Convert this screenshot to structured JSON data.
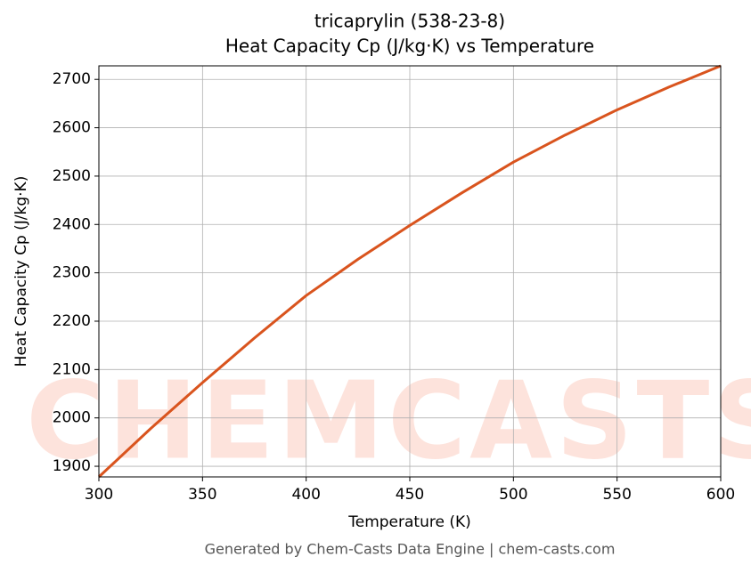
{
  "chart_data": {
    "type": "line",
    "title": "tricaprylin (538-23-8)",
    "subtitle": "Heat Capacity Cp (J/kg·K) vs Temperature",
    "x_label": "Temperature (K)",
    "y_label": "Heat Capacity Cp (J/kg·K)",
    "footer": "Generated by Chem-Casts Data Engine | chem-casts.com",
    "watermark": "CHEMCASTS",
    "x": [
      300,
      325,
      350,
      375,
      400,
      425,
      450,
      475,
      500,
      525,
      550,
      575,
      600
    ],
    "series": [
      {
        "name": "Cp",
        "color": "#d9541e",
        "values": [
          1878,
          1978,
          2073,
          2165,
          2253,
          2328,
          2398,
          2465,
          2529,
          2585,
          2637,
          2684,
          2728
        ]
      }
    ],
    "xlim": [
      300,
      600
    ],
    "xticks": [
      300,
      350,
      400,
      450,
      500,
      550,
      600
    ],
    "ylim": [
      1878,
      2728
    ],
    "yticks": [
      1900,
      2000,
      2100,
      2200,
      2300,
      2400,
      2500,
      2600,
      2700
    ],
    "grid": true
  }
}
